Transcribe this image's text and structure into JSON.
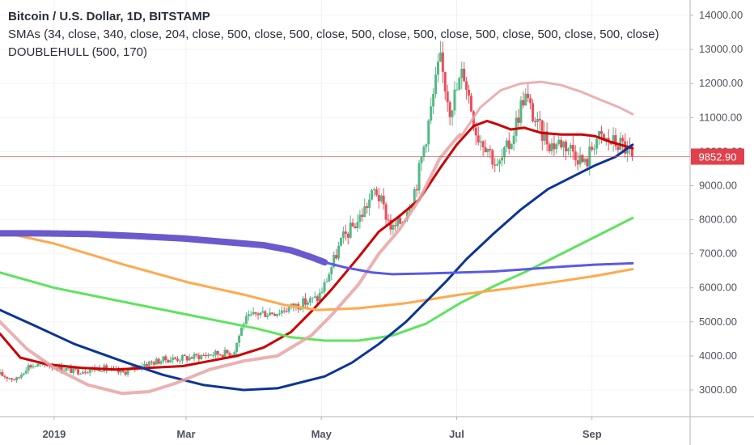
{
  "legend": {
    "title": "Bitcoin / U.S. Dollar, 1D, BITSTAMP",
    "smas": "SMAs (34, close, 340, close, 204, close, 500, close, 500, close, 500, close, 500, close, 500, close, 500, close, 500, close)",
    "doublehull": "DOUBLEHULL (500, 170)"
  },
  "colors": {
    "up_candle": "#53b987",
    "down_candle": "#eb4d5c",
    "sma34": "#cc0000",
    "sma340": "#5fe35f",
    "sma204": "#ffa94d",
    "sma500_blue": "#0b3596",
    "hull_purple": "#6a5acd",
    "hull_blue": "#5a5ae6",
    "pink": "#e8a3a3",
    "price_tag": "#e0414c"
  },
  "chart_data": {
    "type": "candlestick",
    "title": "Bitcoin / U.S. Dollar, 1D, BITSTAMP",
    "ylim": [
      2200,
      14500
    ],
    "y_ticks": [
      "3000.00",
      "4000.00",
      "5000.00",
      "6000.00",
      "7000.00",
      "8000.00",
      "9000.00",
      "10000.00",
      "11000.00",
      "12000.00",
      "13000.00",
      "14000.00"
    ],
    "x_ticks": [
      "2019",
      "Mar",
      "May",
      "Jul",
      "Sep"
    ],
    "current_price": "9852.90",
    "current_price_value": 9852.9,
    "month_index": {
      "2019": 1.0,
      "Mar": 2.95,
      "May": 4.95,
      "Jul": 6.95,
      "Sep": 8.95
    },
    "xlim": [
      0.2,
      10.4
    ],
    "candles_anchors": [
      [
        0.2,
        3450
      ],
      [
        0.45,
        3300
      ],
      [
        0.6,
        3700
      ],
      [
        0.9,
        3750
      ],
      [
        1.3,
        3550
      ],
      [
        1.7,
        3650
      ],
      [
        2.0,
        3500
      ],
      [
        2.3,
        3750
      ],
      [
        2.65,
        3900
      ],
      [
        3.0,
        3950
      ],
      [
        3.3,
        4050
      ],
      [
        3.65,
        4100
      ],
      [
        3.8,
        5000
      ],
      [
        4.0,
        5250
      ],
      [
        4.3,
        5300
      ],
      [
        4.6,
        5500
      ],
      [
        4.9,
        5700
      ],
      [
        5.0,
        6100
      ],
      [
        5.25,
        7400
      ],
      [
        5.5,
        8000
      ],
      [
        5.75,
        8900
      ],
      [
        6.0,
        7700
      ],
      [
        6.15,
        8000
      ],
      [
        6.35,
        9000
      ],
      [
        6.55,
        11000
      ],
      [
        6.7,
        12700
      ],
      [
        6.85,
        11300
      ],
      [
        6.95,
        11800
      ],
      [
        7.05,
        12400
      ],
      [
        7.25,
        10500
      ],
      [
        7.4,
        10200
      ],
      [
        7.55,
        9500
      ],
      [
        7.75,
        10300
      ],
      [
        7.95,
        11700
      ],
      [
        8.15,
        10700
      ],
      [
        8.35,
        10200
      ],
      [
        8.5,
        10300
      ],
      [
        8.7,
        10000
      ],
      [
        8.85,
        9600
      ],
      [
        9.0,
        10400
      ],
      [
        9.2,
        10300
      ],
      [
        9.4,
        10200
      ],
      [
        9.55,
        9850
      ]
    ],
    "series": [
      {
        "name": "SMA 34",
        "color": "#cc0000",
        "x": [
          0.2,
          0.5,
          0.9,
          1.4,
          1.9,
          2.4,
          2.9,
          3.3,
          3.7,
          4.1,
          4.5,
          4.8,
          5.1,
          5.5,
          5.8,
          6.1,
          6.4,
          6.7,
          6.95,
          7.2,
          7.4,
          7.55,
          7.75,
          7.95,
          8.2,
          8.5,
          8.8,
          9.0,
          9.2,
          9.55
        ],
        "y": [
          4650,
          3950,
          3750,
          3650,
          3600,
          3650,
          3700,
          3850,
          4000,
          4250,
          4700,
          5300,
          5950,
          6900,
          7650,
          8100,
          8600,
          9500,
          10200,
          10750,
          10900,
          10800,
          10650,
          10700,
          10550,
          10500,
          10500,
          10450,
          10300,
          10100
        ]
      },
      {
        "name": "SMA 340",
        "color": "#5fe35f",
        "x": [
          0.2,
          1.0,
          2.0,
          3.0,
          4.0,
          4.5,
          5.0,
          5.5,
          6.0,
          6.5,
          7.0,
          7.5,
          8.0,
          8.5,
          9.0,
          9.55
        ],
        "y": [
          6450,
          6000,
          5600,
          5200,
          4800,
          4550,
          4450,
          4450,
          4600,
          4950,
          5550,
          6050,
          6500,
          7000,
          7500,
          8050
        ]
      },
      {
        "name": "SMA 204",
        "color": "#ffa94d",
        "x": [
          0.2,
          1.0,
          2.0,
          3.0,
          3.8,
          4.4,
          4.9,
          5.5,
          6.2,
          7.0,
          7.8,
          8.5,
          9.0,
          9.55
        ],
        "y": [
          7650,
          7300,
          6700,
          6150,
          5800,
          5500,
          5350,
          5400,
          5550,
          5800,
          6000,
          6200,
          6350,
          6550
        ]
      },
      {
        "name": "SMA 500",
        "color": "#0b3596",
        "x": [
          0.2,
          0.7,
          1.3,
          2.0,
          2.6,
          3.2,
          3.8,
          4.3,
          4.7,
          5.0,
          5.4,
          5.8,
          6.2,
          6.5,
          6.8,
          7.1,
          7.5,
          7.9,
          8.3,
          8.7,
          9.0,
          9.3,
          9.55
        ],
        "y": [
          5350,
          4900,
          4350,
          3850,
          3450,
          3150,
          3000,
          3050,
          3250,
          3400,
          3800,
          4350,
          5000,
          5600,
          6200,
          6850,
          7600,
          8300,
          8900,
          9300,
          9600,
          9850,
          10200
        ]
      },
      {
        "name": "DOUBLEHULL upper",
        "color": "#e8a3a3",
        "x": [
          7.0,
          7.3,
          7.6,
          7.9,
          8.2,
          8.5,
          8.8,
          9.1,
          9.35,
          9.55
        ],
        "y": [
          10400,
          11300,
          11800,
          12000,
          12050,
          11950,
          11750,
          11500,
          11300,
          11100
        ]
      },
      {
        "name": "DOUBLEHULL lower",
        "color": "#e8a3a3",
        "x": [
          0.2,
          0.6,
          1.0,
          1.5,
          2.0,
          2.4,
          2.8,
          3.3,
          3.8,
          4.3,
          4.8,
          5.1,
          5.5,
          5.8,
          6.1,
          6.4,
          6.7,
          6.95,
          7.0
        ],
        "y": [
          5000,
          4200,
          3650,
          3150,
          2900,
          2950,
          3200,
          3600,
          3850,
          4000,
          4600,
          5200,
          6100,
          7000,
          7700,
          8600,
          9800,
          10400,
          10500
        ]
      },
      {
        "name": "DOUBLEHULL purple",
        "color": "#6a5acd",
        "x": [
          0.2,
          0.8,
          1.5,
          2.2,
          2.9,
          3.5,
          4.1,
          4.5,
          4.8,
          5.0
        ],
        "y": [
          7600,
          7600,
          7580,
          7520,
          7450,
          7350,
          7250,
          7100,
          6900,
          6750
        ]
      },
      {
        "name": "DOUBLEHULL blue",
        "color": "#5a5ae6",
        "x": [
          5.0,
          5.3,
          5.7,
          6.0,
          6.5,
          7.0,
          7.5,
          8.0,
          8.5,
          9.0,
          9.55
        ],
        "y": [
          6750,
          6600,
          6450,
          6400,
          6420,
          6450,
          6480,
          6550,
          6620,
          6680,
          6720
        ]
      }
    ]
  }
}
